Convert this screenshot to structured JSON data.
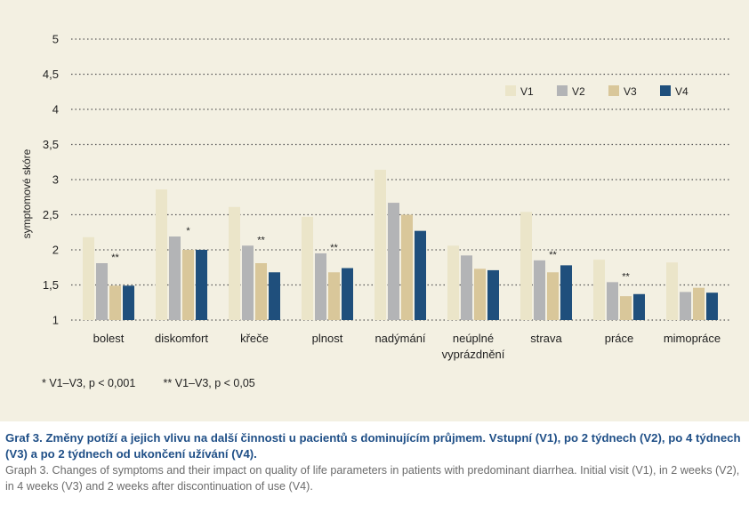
{
  "chart_data": {
    "type": "bar",
    "ylabel": "symptomové skóre",
    "ylim": [
      1,
      5
    ],
    "yticks": [
      "1",
      "1,5",
      "2",
      "2,5",
      "3",
      "3,5",
      "4",
      "4,5",
      "5"
    ],
    "ytick_values": [
      1,
      1.5,
      2,
      2.5,
      3,
      3.5,
      4,
      4.5,
      5
    ],
    "grid": "horizontal dotted",
    "legend_position": "top-right",
    "categories": [
      [
        "bolest"
      ],
      [
        "diskomfort"
      ],
      [
        "křeče"
      ],
      [
        "plnost"
      ],
      [
        "nadýmání"
      ],
      [
        "neúplné",
        "vyprázdnění"
      ],
      [
        "strava"
      ],
      [
        "práce"
      ],
      [
        "mimopráce"
      ]
    ],
    "series": [
      {
        "name": "V1",
        "color": "#ebe5c9",
        "values": [
          2.18,
          2.86,
          2.61,
          2.47,
          3.14,
          2.06,
          2.54,
          1.86,
          1.82
        ]
      },
      {
        "name": "V2",
        "color": "#b3b4b6",
        "values": [
          1.81,
          2.19,
          2.06,
          1.95,
          2.67,
          1.92,
          1.85,
          1.54,
          1.4
        ]
      },
      {
        "name": "V3",
        "color": "#d9c79a",
        "values": [
          1.49,
          2.0,
          1.81,
          1.68,
          2.5,
          1.73,
          1.68,
          1.34,
          1.46
        ]
      },
      {
        "name": "V4",
        "color": "#1f4f7c",
        "values": [
          1.49,
          2.0,
          1.68,
          1.74,
          2.27,
          1.71,
          1.78,
          1.37,
          1.39
        ]
      }
    ],
    "annotations": [
      {
        "category": 0,
        "text": "**"
      },
      {
        "category": 1,
        "text": "*"
      },
      {
        "category": 2,
        "text": "**"
      },
      {
        "category": 3,
        "text": "**"
      },
      {
        "category": 6,
        "text": "**"
      },
      {
        "category": 7,
        "text": "**"
      }
    ]
  },
  "footnote": "* V1–V3, p < 0,001         ** V1–V3, p < 0,05",
  "caption": {
    "cz": "Graf 3. Změny potíží a jejich vlivu na další činnosti u pacientů s dominujícím průjmem. Vstupní (V1), po 2 týdnech (V2), po 4 týdnech (V3) a po 2 týdnech od ukončení užívání (V4).",
    "en": "Graph 3. Changes of symptoms and their impact on quality of life parameters in patients with predominant diarrhea. Initial visit (V1), in 2 weeks (V2), in 4 weeks (V3) and 2 weeks after discontinuation of use (V4)."
  }
}
